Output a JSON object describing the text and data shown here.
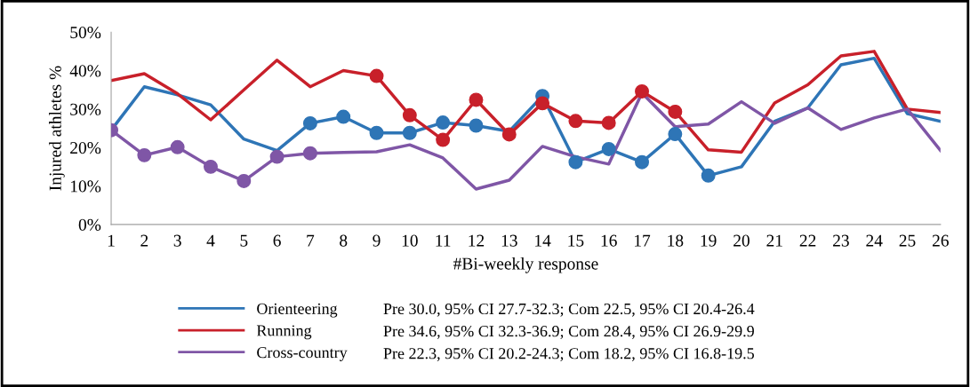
{
  "chart_data": {
    "type": "line",
    "xlabel": "#Bi-weekly response",
    "ylabel": "Injured athletes %",
    "categories": [
      "1",
      "2",
      "3",
      "4",
      "5",
      "6",
      "7",
      "8",
      "9",
      "10",
      "11",
      "12",
      "13",
      "14",
      "15",
      "16",
      "17",
      "18",
      "19",
      "20",
      "21",
      "22",
      "23",
      "24",
      "25",
      "26"
    ],
    "ylim": [
      0,
      50
    ],
    "yticks": [
      {
        "value": 0,
        "label": "0%"
      },
      {
        "value": 10,
        "label": "10%"
      },
      {
        "value": 20,
        "label": "20%"
      },
      {
        "value": 30,
        "label": "30%"
      },
      {
        "value": 40,
        "label": "40%"
      },
      {
        "value": 50,
        "label": "50%"
      }
    ],
    "series": [
      {
        "name": "Orienteering",
        "color": "#2e75b6",
        "values": [
          24.5,
          35.8,
          33.7,
          31.1,
          22.2,
          19.2,
          26.3,
          28,
          23.8,
          23.8,
          26.5,
          25.7,
          24.2,
          33.4,
          16.2,
          19.6,
          16.2,
          23.5,
          12.7,
          15,
          26.8,
          30.3,
          41.5,
          43.2,
          28.8,
          26.8
        ]
      },
      {
        "name": "Running",
        "color": "#c8202a",
        "values": [
          37.4,
          39.2,
          34,
          27.2,
          35,
          42.7,
          35.8,
          40,
          38.6,
          28.4,
          22,
          32.4,
          23.4,
          31.5,
          26.9,
          26.4,
          34.6,
          29.3,
          19.4,
          18.8,
          31.6,
          36.3,
          43.8,
          45,
          30,
          29.1
        ]
      },
      {
        "name": "Cross-country",
        "color": "#7f56a6",
        "values": [
          24.5,
          18,
          20.1,
          15,
          11.3,
          17.6,
          18.5,
          18.7,
          18.9,
          20.7,
          17.3,
          9.2,
          11.5,
          20.3,
          17.6,
          15.7,
          34.2,
          25.4,
          26.1,
          31.9,
          26.3,
          30.3,
          24.7,
          27.7,
          30,
          19.2
        ]
      },
      {
        "type": "scatter",
        "color": "#2e75b6",
        "x": [
          "7",
          "8",
          "9",
          "10",
          "11",
          "12",
          "13",
          "14",
          "15",
          "16",
          "17",
          "18",
          "19"
        ],
        "values": [
          26.3,
          28,
          23.8,
          23.8,
          26.5,
          25.7,
          null,
          33.4,
          16.2,
          19.6,
          16.2,
          23.5,
          12.7
        ]
      },
      {
        "type": "scatter",
        "color": "#c8202a",
        "x": [
          "9",
          "10",
          "11",
          "12",
          "13",
          "14",
          "15",
          "16",
          "17",
          "18"
        ],
        "values": [
          38.6,
          28.4,
          22,
          32.4,
          23.4,
          31.5,
          26.9,
          26.4,
          34.6,
          29.3
        ]
      },
      {
        "type": "scatter",
        "color": "#7f56a6",
        "x": [
          "1",
          "2",
          "3",
          "4",
          "5",
          "6",
          "7"
        ],
        "values": [
          24.5,
          18,
          20.1,
          15,
          11.3,
          17.6,
          18.5
        ]
      }
    ],
    "annotations": [
      "Pre 30.0, 95% CI 27.7-32.3; Com 22.5, 95% CI 20.4-26.4",
      "Pre 34.6, 95% CI 32.3-36.9; Com 28.4, 95% CI 26.9-29.9",
      "Pre 22.3, 95% CI 20.2-24.3; Com 18.2, 95% CI 16.8-19.5"
    ],
    "legend": "bottom",
    "grid": false
  }
}
